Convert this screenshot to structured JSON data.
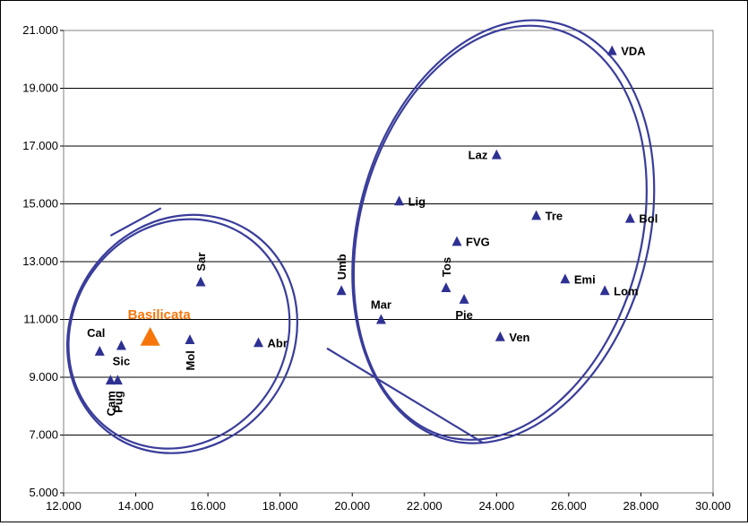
{
  "chart_data": {
    "type": "scatter",
    "title": "",
    "xlabel": "",
    "ylabel": "",
    "xlim": [
      12000,
      30000
    ],
    "ylim": [
      5000,
      21000
    ],
    "x_ticks": [
      12000,
      14000,
      16000,
      18000,
      20000,
      22000,
      24000,
      26000,
      28000,
      30000
    ],
    "y_ticks": [
      5000,
      7000,
      9000,
      11000,
      13000,
      15000,
      17000,
      19000,
      21000
    ],
    "x_tick_labels": [
      "12.000",
      "14.000",
      "16.000",
      "18.000",
      "20.000",
      "22.000",
      "24.000",
      "26.000",
      "28.000",
      "30.000"
    ],
    "y_tick_labels": [
      "5.000",
      "7.000",
      "9.000",
      "11.000",
      "13.000",
      "15.000",
      "17.000",
      "19.000",
      "21.000"
    ],
    "grid": "horizontal",
    "colors": {
      "marker": "#2e3192",
      "highlight": "#f7760c",
      "cluster": "#3a3d9a",
      "grid": "#000000"
    },
    "points": [
      {
        "label": "VDA",
        "x": 27200,
        "y": 20300,
        "label_pos": "right"
      },
      {
        "label": "Laz",
        "x": 24000,
        "y": 16700,
        "label_pos": "left"
      },
      {
        "label": "Lig",
        "x": 21300,
        "y": 15100,
        "label_pos": "right"
      },
      {
        "label": "Tre",
        "x": 25100,
        "y": 14600,
        "label_pos": "right"
      },
      {
        "label": "Bol",
        "x": 27700,
        "y": 14500,
        "label_pos": "right"
      },
      {
        "label": "FVG",
        "x": 22900,
        "y": 13700,
        "label_pos": "right"
      },
      {
        "label": "Umb",
        "x": 19700,
        "y": 12000,
        "label_pos": "vertical-above"
      },
      {
        "label": "Tos",
        "x": 22600,
        "y": 12100,
        "label_pos": "vertical-above"
      },
      {
        "label": "Emi",
        "x": 25900,
        "y": 12400,
        "label_pos": "right"
      },
      {
        "label": "Lom",
        "x": 27000,
        "y": 12000,
        "label_pos": "right"
      },
      {
        "label": "Pie",
        "x": 23100,
        "y": 11700,
        "label_pos": "below"
      },
      {
        "label": "Mar",
        "x": 20800,
        "y": 11000,
        "label_pos": "above"
      },
      {
        "label": "Ven",
        "x": 24100,
        "y": 10400,
        "label_pos": "right"
      },
      {
        "label": "Sar",
        "x": 15800,
        "y": 12300,
        "label_pos": "vertical-above"
      },
      {
        "label": "Abr",
        "x": 17400,
        "y": 10200,
        "label_pos": "right"
      },
      {
        "label": "Mol",
        "x": 15500,
        "y": 10300,
        "label_pos": "vertical-below"
      },
      {
        "label": "Cal",
        "x": 13000,
        "y": 9900,
        "label_pos": "above-left"
      },
      {
        "label": "Sic",
        "x": 13600,
        "y": 10100,
        "label_pos": "below"
      },
      {
        "label": "Cam",
        "x": 13300,
        "y": 8900,
        "label_pos": "vertical-below"
      },
      {
        "label": "Pug",
        "x": 13500,
        "y": 8900,
        "label_pos": "vertical-below"
      }
    ],
    "highlight": {
      "label": "Basilicata",
      "x": 14400,
      "y": 10400
    },
    "clusters": [
      {
        "name": "south",
        "cx": 15200,
        "cy": 10500,
        "rx": 2950,
        "ry": 4100,
        "rotation_deg": 35,
        "double": true,
        "tail": [
          [
            14700,
            14850
          ],
          [
            13300,
            13900
          ]
        ]
      },
      {
        "name": "north",
        "cx": 24100,
        "cy": 14000,
        "rx": 3900,
        "ry": 7300,
        "rotation_deg": 15,
        "double": true,
        "tail": [
          [
            19300,
            10000
          ],
          [
            23600,
            6750
          ]
        ]
      }
    ]
  }
}
